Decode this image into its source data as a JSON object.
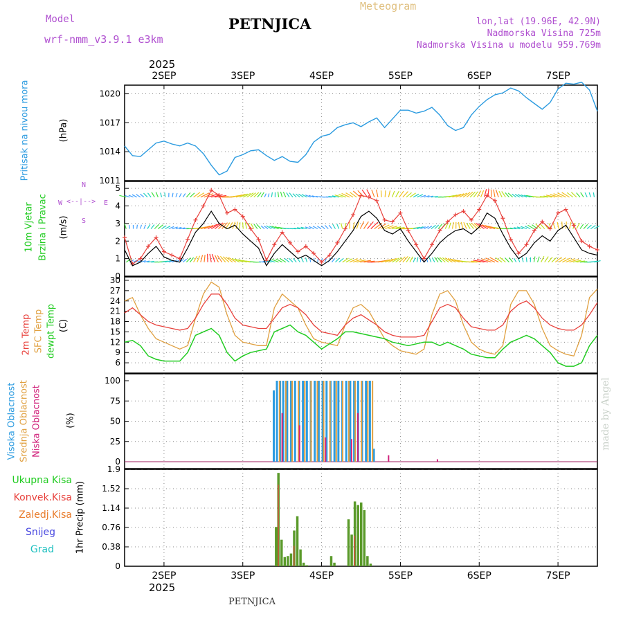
{
  "header": {
    "model_label": "Model",
    "model_name": "wrf-nmm_v3.9.1 e3km",
    "station": "PETNJICA",
    "product": "Meteogram",
    "lonlat": "lon,lat (19.96E, 42.9N)",
    "elevation": "Nadmorska Visina 725m",
    "model_elevation": "Nadmorska Visina u modelu 959.769m",
    "watermark": "made by Angel",
    "footer_station": "PETNJICA"
  },
  "colors": {
    "pressure": "#2b9be0",
    "wind_speed": "#000000",
    "gust": "#e8413c",
    "temp2m": "#e8413c",
    "sfc_temp": "#e0a040",
    "dewpoint": "#22cc22",
    "high_cloud": "#2b9be0",
    "mid_cloud": "#e0a040",
    "low_cloud": "#d0207a",
    "total_rain": "#5a9a2a",
    "conv_rain": "#e8413c",
    "freezing_rain": "#e87b2a",
    "snow": "#4848e0",
    "hail": "#20c0c0"
  },
  "time_axis": {
    "year": "2025",
    "dates": [
      "2SEP",
      "3SEP",
      "4SEP",
      "5SEP",
      "6SEP",
      "7SEP"
    ],
    "start_day": 1.5,
    "end_day": 7.5
  },
  "chart_data": [
    {
      "type": "line",
      "name": "pressure",
      "title": "Pritisak na nivou mora",
      "ylabel": "(hPa)",
      "ylim": [
        1011,
        1020.9
      ],
      "yticks": [
        "1011",
        "1014",
        "1017",
        "1020"
      ],
      "series": [
        {
          "name": "MSLP",
          "x": [
            1.5,
            1.6,
            1.7,
            1.8,
            1.9,
            2.0,
            2.1,
            2.2,
            2.3,
            2.4,
            2.5,
            2.6,
            2.7,
            2.8,
            2.9,
            3.0,
            3.1,
            3.2,
            3.3,
            3.4,
            3.5,
            3.6,
            3.7,
            3.8,
            3.9,
            4.0,
            4.1,
            4.2,
            4.3,
            4.4,
            4.5,
            4.6,
            4.7,
            4.8,
            4.9,
            5.0,
            5.1,
            5.2,
            5.3,
            5.4,
            5.5,
            5.6,
            5.7,
            5.8,
            5.9,
            6.0,
            6.1,
            6.2,
            6.3,
            6.4,
            6.5,
            6.6,
            6.7,
            6.8,
            6.9,
            7.0,
            7.1,
            7.2,
            7.3,
            7.4,
            7.5
          ],
          "values": [
            1014.6,
            1013.6,
            1013.5,
            1014.2,
            1014.9,
            1015.1,
            1014.8,
            1014.6,
            1014.9,
            1014.6,
            1013.8,
            1012.6,
            1011.6,
            1012.0,
            1013.4,
            1013.7,
            1014.1,
            1014.2,
            1013.6,
            1013.1,
            1013.5,
            1013.0,
            1012.9,
            1013.7,
            1015.0,
            1015.6,
            1015.8,
            1016.5,
            1016.8,
            1017.0,
            1016.6,
            1017.1,
            1017.5,
            1016.5,
            1017.4,
            1018.3,
            1018.3,
            1018.0,
            1018.2,
            1018.6,
            1017.8,
            1016.7,
            1016.2,
            1016.5,
            1017.8,
            1018.7,
            1019.4,
            1019.9,
            1020.1,
            1020.6,
            1020.3,
            1019.6,
            1019.0,
            1018.4,
            1019.1,
            1020.5,
            1021.1,
            1021.0,
            1021.2,
            1020.4,
            1018.2
          ]
        }
      ]
    },
    {
      "type": "line",
      "name": "wind",
      "title": "10m Vjetar",
      "subtitle": "Brzina i Pravac",
      "ylabel": "(m/s)",
      "compass": {
        "north": "N",
        "south": "S",
        "west": "W",
        "east": "E"
      },
      "ylim": [
        0,
        5.4
      ],
      "yticks": [
        "0",
        "1",
        "2",
        "3",
        "4",
        "5"
      ],
      "series": [
        {
          "name": "speed",
          "x": [
            1.5,
            1.6,
            1.7,
            1.8,
            1.9,
            2.0,
            2.1,
            2.2,
            2.3,
            2.4,
            2.5,
            2.6,
            2.7,
            2.8,
            2.9,
            3.0,
            3.1,
            3.2,
            3.3,
            3.4,
            3.5,
            3.6,
            3.7,
            3.8,
            3.9,
            4.0,
            4.1,
            4.2,
            4.3,
            4.4,
            4.5,
            4.6,
            4.7,
            4.8,
            4.9,
            5.0,
            5.1,
            5.2,
            5.3,
            5.4,
            5.5,
            5.6,
            5.7,
            5.8,
            5.9,
            6.0,
            6.1,
            6.2,
            6.3,
            6.4,
            6.5,
            6.6,
            6.7,
            6.8,
            6.9,
            7.0,
            7.1,
            7.2,
            7.3,
            7.4,
            7.5
          ],
          "values": [
            1.5,
            0.6,
            0.8,
            1.3,
            1.7,
            1.1,
            0.9,
            0.8,
            1.6,
            2.5,
            3.0,
            3.7,
            3.0,
            2.7,
            2.9,
            2.4,
            2.0,
            1.6,
            0.6,
            1.3,
            1.8,
            1.4,
            1.0,
            1.2,
            0.9,
            0.6,
            0.9,
            1.4,
            2.0,
            2.6,
            3.4,
            3.7,
            3.3,
            2.6,
            2.4,
            2.7,
            2.0,
            1.4,
            0.8,
            1.3,
            1.9,
            2.3,
            2.6,
            2.7,
            2.4,
            2.8,
            3.6,
            3.3,
            2.4,
            1.6,
            1.0,
            1.3,
            1.9,
            2.3,
            2.0,
            2.6,
            2.9,
            2.2,
            1.5,
            1.3,
            1.2
          ]
        },
        {
          "name": "gust",
          "x": [
            1.5,
            1.6,
            1.7,
            1.8,
            1.9,
            2.0,
            2.1,
            2.2,
            2.3,
            2.4,
            2.5,
            2.6,
            2.7,
            2.8,
            2.9,
            3.0,
            3.1,
            3.2,
            3.3,
            3.4,
            3.5,
            3.6,
            3.7,
            3.8,
            3.9,
            4.0,
            4.1,
            4.2,
            4.3,
            4.4,
            4.5,
            4.6,
            4.7,
            4.8,
            4.9,
            5.0,
            5.1,
            5.2,
            5.3,
            5.4,
            5.5,
            5.6,
            5.7,
            5.8,
            5.9,
            6.0,
            6.1,
            6.2,
            6.3,
            6.4,
            6.5,
            6.6,
            6.7,
            6.8,
            6.9,
            7.0,
            7.1,
            7.2,
            7.3,
            7.4,
            7.5
          ],
          "values": [
            2.2,
            0.7,
            1.0,
            1.7,
            2.2,
            1.4,
            1.2,
            1.0,
            2.1,
            3.2,
            4.0,
            4.9,
            4.6,
            3.6,
            3.8,
            3.4,
            2.7,
            2.1,
            0.9,
            1.8,
            2.5,
            1.9,
            1.4,
            1.7,
            1.3,
            0.8,
            1.2,
            1.9,
            2.7,
            3.5,
            4.6,
            4.5,
            4.3,
            3.2,
            3.1,
            3.6,
            2.6,
            1.8,
            1.0,
            1.8,
            2.6,
            3.1,
            3.5,
            3.7,
            3.2,
            3.8,
            4.6,
            4.3,
            3.3,
            2.1,
            1.3,
            1.8,
            2.6,
            3.1,
            2.7,
            3.6,
            3.8,
            2.9,
            2.0,
            1.7,
            1.5
          ]
        }
      ]
    },
    {
      "type": "line",
      "name": "temperature",
      "title": "2m Temp",
      "subtitle": "SFC Temp",
      "subtitle2": "dewpt Temp",
      "ylabel": "(C)",
      "ylim": [
        3,
        31
      ],
      "yticks": [
        "6",
        "9",
        "12",
        "15",
        "18",
        "21",
        "24",
        "27",
        "30"
      ],
      "series": [
        {
          "name": "2m Temp",
          "x": [
            1.5,
            1.6,
            1.7,
            1.8,
            1.9,
            2.0,
            2.1,
            2.2,
            2.3,
            2.4,
            2.5,
            2.6,
            2.7,
            2.8,
            2.9,
            3.0,
            3.1,
            3.2,
            3.3,
            3.4,
            3.5,
            3.6,
            3.7,
            3.8,
            3.9,
            4.0,
            4.1,
            4.2,
            4.3,
            4.4,
            4.5,
            4.6,
            4.7,
            4.8,
            4.9,
            5.0,
            5.1,
            5.2,
            5.3,
            5.4,
            5.5,
            5.6,
            5.7,
            5.8,
            5.9,
            6.0,
            6.1,
            6.2,
            6.3,
            6.4,
            6.5,
            6.6,
            6.7,
            6.8,
            6.9,
            7.0,
            7.1,
            7.2,
            7.3,
            7.4,
            7.5
          ],
          "values": [
            20.5,
            22,
            20,
            18,
            17,
            16.5,
            16,
            15.5,
            16,
            19,
            23,
            26,
            26,
            23,
            19,
            17,
            16.5,
            16,
            16,
            19,
            22,
            23,
            22,
            20,
            17,
            15,
            14.5,
            14,
            17,
            19,
            20,
            18.5,
            17,
            15,
            14,
            13.5,
            13.5,
            13.5,
            14,
            18,
            22,
            23,
            22,
            19,
            16.5,
            16,
            15.5,
            15.5,
            17,
            21,
            23,
            24,
            22,
            19,
            17,
            16,
            15.5,
            15.5,
            17,
            20,
            23.5
          ]
        },
        {
          "name": "SFC Temp",
          "x": [
            1.5,
            1.6,
            1.7,
            1.8,
            1.9,
            2.0,
            2.1,
            2.2,
            2.3,
            2.4,
            2.5,
            2.6,
            2.7,
            2.8,
            2.9,
            3.0,
            3.1,
            3.2,
            3.3,
            3.4,
            3.5,
            3.6,
            3.7,
            3.8,
            3.9,
            4.0,
            4.1,
            4.2,
            4.3,
            4.4,
            4.5,
            4.6,
            4.7,
            4.8,
            4.9,
            5.0,
            5.1,
            5.2,
            5.3,
            5.4,
            5.5,
            5.6,
            5.7,
            5.8,
            5.9,
            6.0,
            6.1,
            6.2,
            6.3,
            6.4,
            6.5,
            6.6,
            6.7,
            6.8,
            6.9,
            7.0,
            7.1,
            7.2,
            7.3,
            7.4,
            7.5
          ],
          "values": [
            24,
            25,
            20,
            16,
            13,
            12,
            11,
            10,
            11,
            19,
            26,
            29.5,
            28,
            20,
            14,
            12,
            11.5,
            11,
            11,
            22,
            26,
            24,
            22,
            17,
            13,
            12,
            11.5,
            11,
            17,
            22,
            23,
            21,
            17,
            13,
            11,
            9.5,
            9,
            8.5,
            10,
            20,
            26,
            27,
            24,
            17,
            12,
            10,
            9,
            8.5,
            11,
            23,
            27,
            27,
            23,
            16,
            11,
            9.5,
            8.5,
            8,
            14,
            25,
            27.5
          ]
        },
        {
          "name": "dewpt Temp",
          "x": [
            1.5,
            1.6,
            1.7,
            1.8,
            1.9,
            2.0,
            2.1,
            2.2,
            2.3,
            2.4,
            2.5,
            2.6,
            2.7,
            2.8,
            2.9,
            3.0,
            3.1,
            3.2,
            3.3,
            3.4,
            3.5,
            3.6,
            3.7,
            3.8,
            3.9,
            4.0,
            4.1,
            4.2,
            4.3,
            4.4,
            4.5,
            4.6,
            4.7,
            4.8,
            4.9,
            5.0,
            5.1,
            5.2,
            5.3,
            5.4,
            5.5,
            5.6,
            5.7,
            5.8,
            5.9,
            6.0,
            6.1,
            6.2,
            6.3,
            6.4,
            6.5,
            6.6,
            6.7,
            6.8,
            6.9,
            7.0,
            7.1,
            7.2,
            7.3,
            7.4,
            7.5
          ],
          "values": [
            12,
            12.5,
            11,
            8,
            7,
            6.5,
            6.5,
            6.5,
            9,
            14,
            15,
            16,
            14,
            9,
            6.5,
            8,
            9,
            9.5,
            10,
            15,
            16,
            17,
            15,
            14,
            12,
            10,
            11.5,
            13,
            15,
            15,
            14.5,
            14,
            13.5,
            13,
            12,
            11.5,
            11,
            11.5,
            12,
            12,
            11,
            12,
            11,
            10,
            8.5,
            8,
            7.5,
            7.5,
            10,
            12,
            13,
            14,
            13,
            11,
            9,
            6,
            5,
            5,
            6,
            11,
            14
          ]
        }
      ]
    },
    {
      "type": "bar",
      "name": "cloud",
      "title": "Visoka Oblacnost",
      "subtitle": "Srednja Oblacnost",
      "subtitle2": "Niska Oblacnost",
      "ylabel": "(%)",
      "ylim": [
        0,
        100
      ],
      "yticks": [
        "0",
        "25",
        "50",
        "75",
        "100"
      ],
      "series": [
        {
          "name": "high",
          "x": [
            3.38,
            3.42,
            3.46,
            3.5,
            3.55,
            3.6,
            3.65,
            3.7,
            3.75,
            3.8,
            3.85,
            3.9,
            3.95,
            4.0,
            4.05,
            4.1,
            4.15,
            4.2,
            4.25,
            4.3,
            4.35,
            4.4,
            4.45,
            4.5,
            4.55,
            4.6,
            4.65
          ],
          "values": [
            88,
            100,
            100,
            100,
            100,
            100,
            100,
            100,
            100,
            100,
            100,
            100,
            100,
            100,
            100,
            100,
            100,
            100,
            100,
            100,
            100,
            100,
            100,
            100,
            100,
            100,
            16
          ]
        },
        {
          "name": "mid",
          "x": [
            3.44,
            3.52,
            3.6,
            3.68,
            3.76,
            3.84,
            3.92,
            4.0,
            4.08,
            4.16,
            4.24,
            4.32,
            4.4,
            4.48,
            4.56,
            4.62
          ],
          "values": [
            100,
            100,
            100,
            100,
            100,
            100,
            100,
            100,
            100,
            100,
            100,
            100,
            100,
            100,
            100,
            100
          ]
        },
        {
          "name": "low",
          "x": [
            3.5,
            3.72,
            4.05,
            4.38,
            4.46,
            4.85,
            5.47
          ],
          "values": [
            60,
            45,
            30,
            28,
            60,
            8,
            3
          ]
        }
      ]
    },
    {
      "type": "bar",
      "name": "precipitation",
      "title": "Ukupna Kisa",
      "subtitle": "Konvek.Kisa",
      "subtitle2": "Zaledj.Kisa",
      "subtitle3": "Snijeg",
      "subtitle4": "Grad",
      "ylabel": "1hr Precip (mm)",
      "ylim": [
        0,
        1.9
      ],
      "yticks": [
        "0",
        "0.38",
        "0.76",
        "1.14",
        "1.52",
        "1.9"
      ],
      "series": [
        {
          "name": "total",
          "x": [
            3.42,
            3.45,
            3.49,
            3.53,
            3.57,
            3.61,
            3.65,
            3.69,
            3.73,
            3.77,
            3.81,
            3.85,
            4.12,
            4.16,
            4.34,
            4.38,
            4.42,
            4.46,
            4.5,
            4.54,
            4.58,
            4.62
          ],
          "values": [
            0.77,
            1.83,
            0.52,
            0.18,
            0.2,
            0.25,
            0.7,
            0.98,
            0.33,
            0.07,
            0.02,
            0,
            0.2,
            0.07,
            0.92,
            0.62,
            1.27,
            1.2,
            1.25,
            1.1,
            0.2,
            0.05
          ]
        },
        {
          "name": "convective",
          "x": [
            3.45,
            3.65,
            4.42
          ],
          "values": [
            1.6,
            0.4,
            0.6
          ]
        }
      ]
    }
  ]
}
